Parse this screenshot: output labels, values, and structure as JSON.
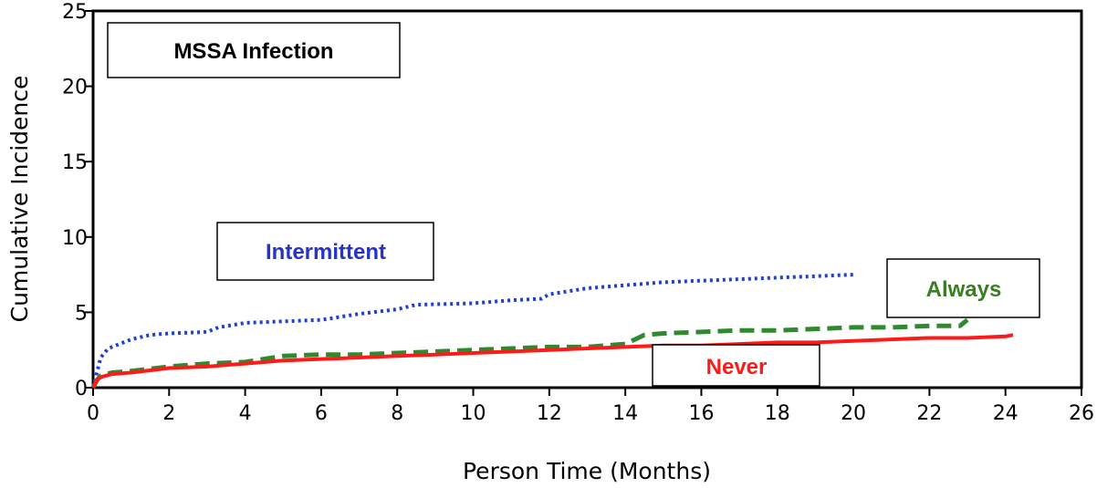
{
  "chart_data": {
    "type": "line",
    "title": "MSSA Infection",
    "xlabel": "Person Time (Months)",
    "ylabel": "Cumulative Incidence",
    "xlim": [
      0,
      26
    ],
    "ylim": [
      0,
      25
    ],
    "xticks": [
      0,
      2,
      4,
      6,
      8,
      10,
      12,
      14,
      16,
      18,
      20,
      22,
      24,
      26
    ],
    "yticks": [
      0,
      5,
      10,
      15,
      20,
      25
    ],
    "grid": false,
    "series": [
      {
        "name": "Intermittent",
        "color": "#1f3fd6",
        "style": "dotted",
        "x": [
          0,
          0.1,
          0.2,
          0.4,
          0.6,
          1.0,
          1.5,
          2.0,
          3.0,
          3.3,
          4.0,
          5.0,
          6.0,
          6.5,
          7.0,
          8.0,
          8.5,
          10.0,
          11.0,
          11.8,
          12.0,
          12.5,
          13.0,
          14.0,
          15.0,
          16.0,
          17.0,
          18.0,
          19.0,
          20.0
        ],
        "values": [
          0.0,
          1.0,
          2.0,
          2.6,
          2.8,
          3.2,
          3.5,
          3.6,
          3.7,
          4.0,
          4.3,
          4.4,
          4.5,
          4.7,
          4.9,
          5.2,
          5.5,
          5.6,
          5.8,
          5.9,
          6.2,
          6.4,
          6.6,
          6.8,
          7.0,
          7.1,
          7.2,
          7.3,
          7.4,
          7.5
        ]
      },
      {
        "name": "Always",
        "color": "#2f8a2f",
        "style": "dashed",
        "x": [
          0,
          0.1,
          0.2,
          0.5,
          1.0,
          2.0,
          3.0,
          4.0,
          4.5,
          5.0,
          6.0,
          7.0,
          8.0,
          9.0,
          10.0,
          11.0,
          12.0,
          13.0,
          14.0,
          14.5,
          15.0,
          16.0,
          17.0,
          18.0,
          19.0,
          20.0,
          21.0,
          22.0,
          22.8,
          23.0
        ],
        "values": [
          0.0,
          0.5,
          0.8,
          1.0,
          1.1,
          1.4,
          1.6,
          1.7,
          1.9,
          2.1,
          2.2,
          2.2,
          2.3,
          2.4,
          2.5,
          2.6,
          2.7,
          2.7,
          2.9,
          3.5,
          3.6,
          3.7,
          3.8,
          3.8,
          3.9,
          4.0,
          4.0,
          4.1,
          4.1,
          4.5
        ]
      },
      {
        "name": "Never",
        "color": "#ff1a1a",
        "style": "solid",
        "x": [
          0,
          0.1,
          0.2,
          0.5,
          1.0,
          2.0,
          3.0,
          4.0,
          5.0,
          6.0,
          7.0,
          8.0,
          9.0,
          10.0,
          11.0,
          12.0,
          13.0,
          14.0,
          15.0,
          16.0,
          17.0,
          18.0,
          19.0,
          20.0,
          21.0,
          22.0,
          23.0,
          24.0,
          24.2
        ],
        "values": [
          0.0,
          0.5,
          0.7,
          0.9,
          1.0,
          1.3,
          1.4,
          1.6,
          1.8,
          1.9,
          2.0,
          2.1,
          2.2,
          2.3,
          2.4,
          2.5,
          2.6,
          2.7,
          2.8,
          2.8,
          2.9,
          3.0,
          3.0,
          3.1,
          3.2,
          3.3,
          3.3,
          3.4,
          3.5
        ]
      }
    ]
  }
}
